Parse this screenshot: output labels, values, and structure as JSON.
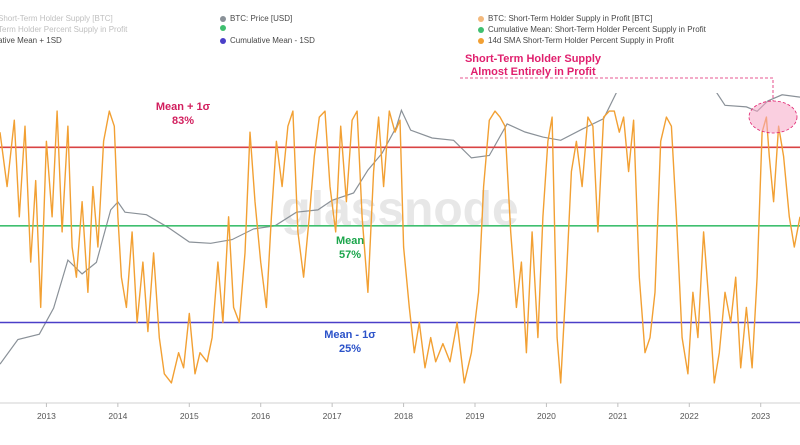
{
  "chart_data": {
    "type": "line",
    "watermark": "glassnode",
    "legend": {
      "placement": "top",
      "items": [
        {
          "label": "Short-Term Holder Supply [BTC]",
          "color": "#f3b97c"
        },
        {
          "label": "Term Holder Percent Supply in Profit",
          "color": "#f3b97c"
        },
        {
          "label": "ative Mean + 1SD",
          "color": "#d94343"
        },
        {
          "label": "BTC: Price [USD]",
          "color": "#8a9198"
        },
        {
          "label": "",
          "color": "#3fbf6f"
        },
        {
          "label": "Cumulative Mean - 1SD",
          "color": "#4a3fc8"
        },
        {
          "label": "BTC: Short-Term Holder Supply in Profit [BTC]",
          "color": "#f3b97c"
        },
        {
          "label": "Cumulative Mean: Short-Term Holder Percent Supply in Profit",
          "color": "#3fbf6f"
        },
        {
          "label": "14d SMA Short-Term Holder Percent Supply in Profit",
          "color": "#f2a033"
        }
      ]
    },
    "x_ticks": [
      "2013",
      "2014",
      "2015",
      "2016",
      "2017",
      "2018",
      "2019",
      "2020",
      "2021",
      "2022",
      "2023"
    ],
    "xlim": [
      2012.35,
      2023.55
    ],
    "ylim_percent": [
      0,
      100
    ],
    "reference_lines": [
      {
        "name": "Mean + 1σ",
        "value_label": "83%",
        "value": 83,
        "color": "#d94343"
      },
      {
        "name": "Mean",
        "value_label": "57%",
        "value": 57,
        "color": "#3fbf6f"
      },
      {
        "name": "Mean - 1σ",
        "value_label": "25%",
        "value": 25,
        "color": "#4a3fc8"
      }
    ],
    "annotation": {
      "line1": "Short-Term Holder Supply",
      "line2": "Almost Entirely in Profit",
      "color": "#e0206e"
    },
    "series": [
      {
        "name": "14d SMA Short-Term Holder Percent Supply in Profit",
        "color": "#f2a033",
        "points": [
          [
            2012.35,
            88
          ],
          [
            2012.45,
            70
          ],
          [
            2012.55,
            92
          ],
          [
            2012.62,
            60
          ],
          [
            2012.7,
            90
          ],
          [
            2012.78,
            45
          ],
          [
            2012.85,
            72
          ],
          [
            2012.92,
            30
          ],
          [
            2013.0,
            85
          ],
          [
            2013.08,
            60
          ],
          [
            2013.15,
            95
          ],
          [
            2013.22,
            55
          ],
          [
            2013.3,
            90
          ],
          [
            2013.36,
            50
          ],
          [
            2013.42,
            40
          ],
          [
            2013.5,
            65
          ],
          [
            2013.58,
            35
          ],
          [
            2013.65,
            70
          ],
          [
            2013.72,
            50
          ],
          [
            2013.8,
            85
          ],
          [
            2013.88,
            95
          ],
          [
            2013.95,
            90
          ],
          [
            2014.0,
            60
          ],
          [
            2014.05,
            40
          ],
          [
            2014.12,
            30
          ],
          [
            2014.2,
            55
          ],
          [
            2014.27,
            25
          ],
          [
            2014.35,
            45
          ],
          [
            2014.42,
            22
          ],
          [
            2014.5,
            48
          ],
          [
            2014.58,
            20
          ],
          [
            2014.65,
            8
          ],
          [
            2014.75,
            5
          ],
          [
            2014.85,
            15
          ],
          [
            2014.92,
            10
          ],
          [
            2015.0,
            28
          ],
          [
            2015.08,
            8
          ],
          [
            2015.15,
            15
          ],
          [
            2015.25,
            12
          ],
          [
            2015.32,
            20
          ],
          [
            2015.4,
            45
          ],
          [
            2015.47,
            25
          ],
          [
            2015.55,
            60
          ],
          [
            2015.62,
            30
          ],
          [
            2015.7,
            25
          ],
          [
            2015.78,
            48
          ],
          [
            2015.85,
            88
          ],
          [
            2015.92,
            65
          ],
          [
            2016.0,
            45
          ],
          [
            2016.08,
            30
          ],
          [
            2016.15,
            60
          ],
          [
            2016.22,
            85
          ],
          [
            2016.3,
            70
          ],
          [
            2016.38,
            90
          ],
          [
            2016.45,
            95
          ],
          [
            2016.52,
            55
          ],
          [
            2016.6,
            40
          ],
          [
            2016.68,
            60
          ],
          [
            2016.75,
            80
          ],
          [
            2016.82,
            93
          ],
          [
            2016.9,
            95
          ],
          [
            2016.97,
            70
          ],
          [
            2017.05,
            55
          ],
          [
            2017.12,
            90
          ],
          [
            2017.2,
            65
          ],
          [
            2017.28,
            92
          ],
          [
            2017.35,
            95
          ],
          [
            2017.42,
            60
          ],
          [
            2017.5,
            35
          ],
          [
            2017.58,
            75
          ],
          [
            2017.65,
            93
          ],
          [
            2017.72,
            70
          ],
          [
            2017.8,
            95
          ],
          [
            2017.88,
            88
          ],
          [
            2017.95,
            92
          ],
          [
            2018.0,
            50
          ],
          [
            2018.08,
            30
          ],
          [
            2018.15,
            15
          ],
          [
            2018.22,
            25
          ],
          [
            2018.3,
            10
          ],
          [
            2018.38,
            20
          ],
          [
            2018.45,
            12
          ],
          [
            2018.55,
            18
          ],
          [
            2018.65,
            12
          ],
          [
            2018.75,
            25
          ],
          [
            2018.85,
            5
          ],
          [
            2018.95,
            15
          ],
          [
            2019.05,
            35
          ],
          [
            2019.12,
            70
          ],
          [
            2019.2,
            92
          ],
          [
            2019.28,
            95
          ],
          [
            2019.35,
            93
          ],
          [
            2019.42,
            90
          ],
          [
            2019.5,
            55
          ],
          [
            2019.58,
            30
          ],
          [
            2019.65,
            45
          ],
          [
            2019.72,
            15
          ],
          [
            2019.8,
            55
          ],
          [
            2019.88,
            20
          ],
          [
            2019.95,
            60
          ],
          [
            2020.02,
            85
          ],
          [
            2020.08,
            93
          ],
          [
            2020.15,
            20
          ],
          [
            2020.2,
            5
          ],
          [
            2020.28,
            40
          ],
          [
            2020.35,
            75
          ],
          [
            2020.42,
            85
          ],
          [
            2020.5,
            70
          ],
          [
            2020.58,
            93
          ],
          [
            2020.65,
            90
          ],
          [
            2020.72,
            55
          ],
          [
            2020.8,
            93
          ],
          [
            2020.88,
            95
          ],
          [
            2020.95,
            95
          ],
          [
            2021.02,
            88
          ],
          [
            2021.08,
            93
          ],
          [
            2021.15,
            75
          ],
          [
            2021.22,
            92
          ],
          [
            2021.3,
            40
          ],
          [
            2021.38,
            15
          ],
          [
            2021.45,
            20
          ],
          [
            2021.52,
            35
          ],
          [
            2021.6,
            85
          ],
          [
            2021.68,
            93
          ],
          [
            2021.75,
            90
          ],
          [
            2021.82,
            60
          ],
          [
            2021.9,
            20
          ],
          [
            2021.98,
            8
          ],
          [
            2022.05,
            35
          ],
          [
            2022.12,
            20
          ],
          [
            2022.2,
            55
          ],
          [
            2022.28,
            30
          ],
          [
            2022.35,
            5
          ],
          [
            2022.42,
            15
          ],
          [
            2022.5,
            35
          ],
          [
            2022.58,
            25
          ],
          [
            2022.65,
            40
          ],
          [
            2022.72,
            10
          ],
          [
            2022.8,
            30
          ],
          [
            2022.88,
            10
          ],
          [
            2022.95,
            40
          ],
          [
            2023.02,
            88
          ],
          [
            2023.08,
            93
          ],
          [
            2023.12,
            80
          ],
          [
            2023.18,
            65
          ],
          [
            2023.25,
            90
          ],
          [
            2023.32,
            80
          ],
          [
            2023.4,
            60
          ],
          [
            2023.47,
            50
          ],
          [
            2023.55,
            60
          ]
        ]
      },
      {
        "name": "BTC: Price [USD]",
        "color": "#8a9198",
        "axis": "log",
        "points": [
          [
            2012.35,
            5
          ],
          [
            2012.6,
            11
          ],
          [
            2012.9,
            13
          ],
          [
            2013.1,
            30
          ],
          [
            2013.3,
            140
          ],
          [
            2013.5,
            90
          ],
          [
            2013.7,
            130
          ],
          [
            2013.9,
            700
          ],
          [
            2014.0,
            900
          ],
          [
            2014.1,
            650
          ],
          [
            2014.4,
            600
          ],
          [
            2014.7,
            400
          ],
          [
            2015.0,
            250
          ],
          [
            2015.3,
            240
          ],
          [
            2015.6,
            270
          ],
          [
            2015.9,
            380
          ],
          [
            2016.2,
            420
          ],
          [
            2016.5,
            650
          ],
          [
            2016.8,
            700
          ],
          [
            2017.0,
            950
          ],
          [
            2017.3,
            1200
          ],
          [
            2017.5,
            2500
          ],
          [
            2017.7,
            4300
          ],
          [
            2017.9,
            10000
          ],
          [
            2017.97,
            17000
          ],
          [
            2018.1,
            9000
          ],
          [
            2018.4,
            7000
          ],
          [
            2018.7,
            6500
          ],
          [
            2018.95,
            3700
          ],
          [
            2019.2,
            4000
          ],
          [
            2019.45,
            11000
          ],
          [
            2019.7,
            8500
          ],
          [
            2019.95,
            7200
          ],
          [
            2020.2,
            6500
          ],
          [
            2020.5,
            9300
          ],
          [
            2020.8,
            13000
          ],
          [
            2021.0,
            33000
          ],
          [
            2021.25,
            60000
          ],
          [
            2021.45,
            35000
          ],
          [
            2021.6,
            40000
          ],
          [
            2021.85,
            64000
          ],
          [
            2022.0,
            42000
          ],
          [
            2022.3,
            40000
          ],
          [
            2022.5,
            20000
          ],
          [
            2022.8,
            19000
          ],
          [
            2022.95,
            16500
          ],
          [
            2023.1,
            23000
          ],
          [
            2023.3,
            28000
          ],
          [
            2023.55,
            26000
          ]
        ]
      }
    ]
  }
}
